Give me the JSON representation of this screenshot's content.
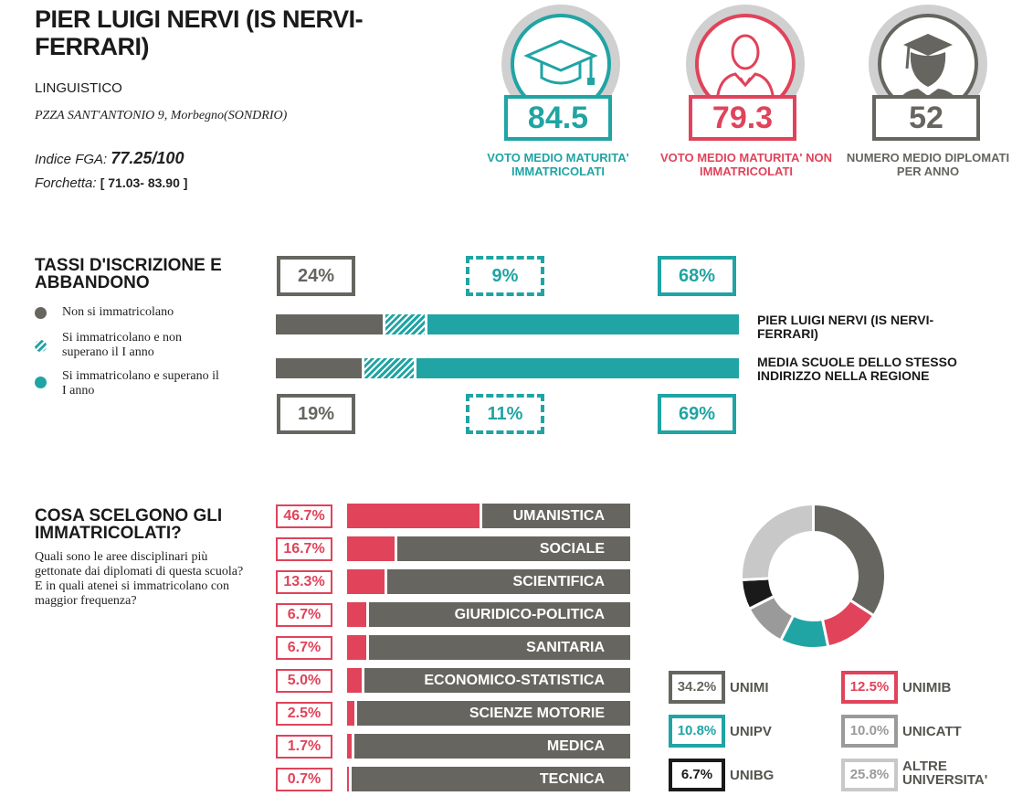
{
  "school": {
    "name": "PIER LUIGI NERVI (IS NERVI-FERRARI)",
    "type": "LINGUISTICO",
    "address": "PZZA SANT'ANTONIO 9, Morbegno(SONDRIO)",
    "fga_label": "Indice FGA:",
    "fga_value": "77.25/100",
    "fork_label": "Forchetta:",
    "fork_value": "[ 71.03- 83.90 ]"
  },
  "kpis": [
    {
      "value": "84.5",
      "label": "VOTO MEDIO MATURITA' IMMATRICOLATI",
      "color": "#20a4a4",
      "icon": "graduation-cap-icon"
    },
    {
      "value": "79.3",
      "label": "VOTO MEDIO MATURITA' NON IMMATRICOLATI",
      "color": "#e0435a",
      "icon": "person-icon"
    },
    {
      "value": "52",
      "label": "NUMERO MEDIO DIPLOMATI PER ANNO",
      "color": "#66655f",
      "icon": "graduate-person-icon"
    }
  ],
  "enrollment": {
    "title": "TASSI D'ISCRIZIONE E ABBANDONO",
    "legend": [
      {
        "label": "Non si immatricolano",
        "style": "solid-gray"
      },
      {
        "label": "Si immatricolano e non superano il I anno",
        "style": "hatched-teal"
      },
      {
        "label": "Si immatricolano e superano il I anno",
        "style": "solid-teal"
      }
    ],
    "school_label": "PIER LUIGI NERVI (IS NERVI-FERRARI)",
    "region_label": "MEDIA SCUOLE DELLO STESSO INDIRIZZO NELLA REGIONE",
    "school_pcts": [
      "24%",
      "9%",
      "68%"
    ],
    "region_pcts": [
      "19%",
      "11%",
      "69%"
    ]
  },
  "areas": {
    "title": "COSA SCELGONO GLI IMMATRICOLATI?",
    "description": "Quali sono le aree disciplinari più gettonate dai diplomati di questa scuola? E in quali atenei si immatricolano con maggior frequenza?"
  },
  "universities": [
    {
      "pct": "34.2%",
      "name": "UNIMI",
      "color": "#66655f"
    },
    {
      "pct": "12.5%",
      "name": "UNIMIB",
      "color": "#e0435a"
    },
    {
      "pct": "10.8%",
      "name": "UNIPV",
      "color": "#20a4a4"
    },
    {
      "pct": "10.0%",
      "name": "UNICATT",
      "color": "#9a9a9a"
    },
    {
      "pct": "6.7%",
      "name": "UNIBG",
      "color": "#1a1a1a"
    },
    {
      "pct": "25.8%",
      "name": "ALTRE UNIVERSITA'",
      "color": "#c8c8c8"
    }
  ],
  "colors": {
    "gray": "#66655f",
    "teal": "#20a4a4",
    "red": "#e0435a"
  },
  "chart_data": [
    {
      "type": "bar",
      "orientation": "horizontal-stacked",
      "categories": [
        "PIER LUIGI NERVI (IS NERVI-FERRARI)",
        "MEDIA SCUOLE DELLO STESSO INDIRIZZO NELLA REGIONE"
      ],
      "series": [
        {
          "name": "Non si immatricolano",
          "values": [
            24,
            19
          ]
        },
        {
          "name": "Si immatricolano e non superano il I anno",
          "values": [
            9,
            11
          ]
        },
        {
          "name": "Si immatricolano e superano il I anno",
          "values": [
            68,
            69
          ]
        }
      ]
    },
    {
      "type": "bar",
      "orientation": "horizontal",
      "categories": [
        "UMANISTICA",
        "SOCIALE",
        "SCIENTIFICA",
        "GIURIDICO-POLITICA",
        "SANITARIA",
        "ECONOMICO-STATISTICA",
        "SCIENZE MOTORIE",
        "MEDICA",
        "TECNICA"
      ],
      "values": [
        46.7,
        16.7,
        13.3,
        6.7,
        6.7,
        5.0,
        2.5,
        1.7,
        0.7
      ],
      "labels": [
        "46.7%",
        "16.7%",
        "13.3%",
        "6.7%",
        "6.7%",
        "5.0%",
        "2.5%",
        "1.7%",
        "0.7%"
      ]
    },
    {
      "type": "pie",
      "style": "donut",
      "categories": [
        "UNIMI",
        "UNIMIB",
        "UNIPV",
        "UNICATT",
        "UNIBG",
        "ALTRE UNIVERSITA'"
      ],
      "values": [
        34.2,
        12.5,
        10.8,
        10.0,
        6.7,
        25.8
      ]
    }
  ]
}
